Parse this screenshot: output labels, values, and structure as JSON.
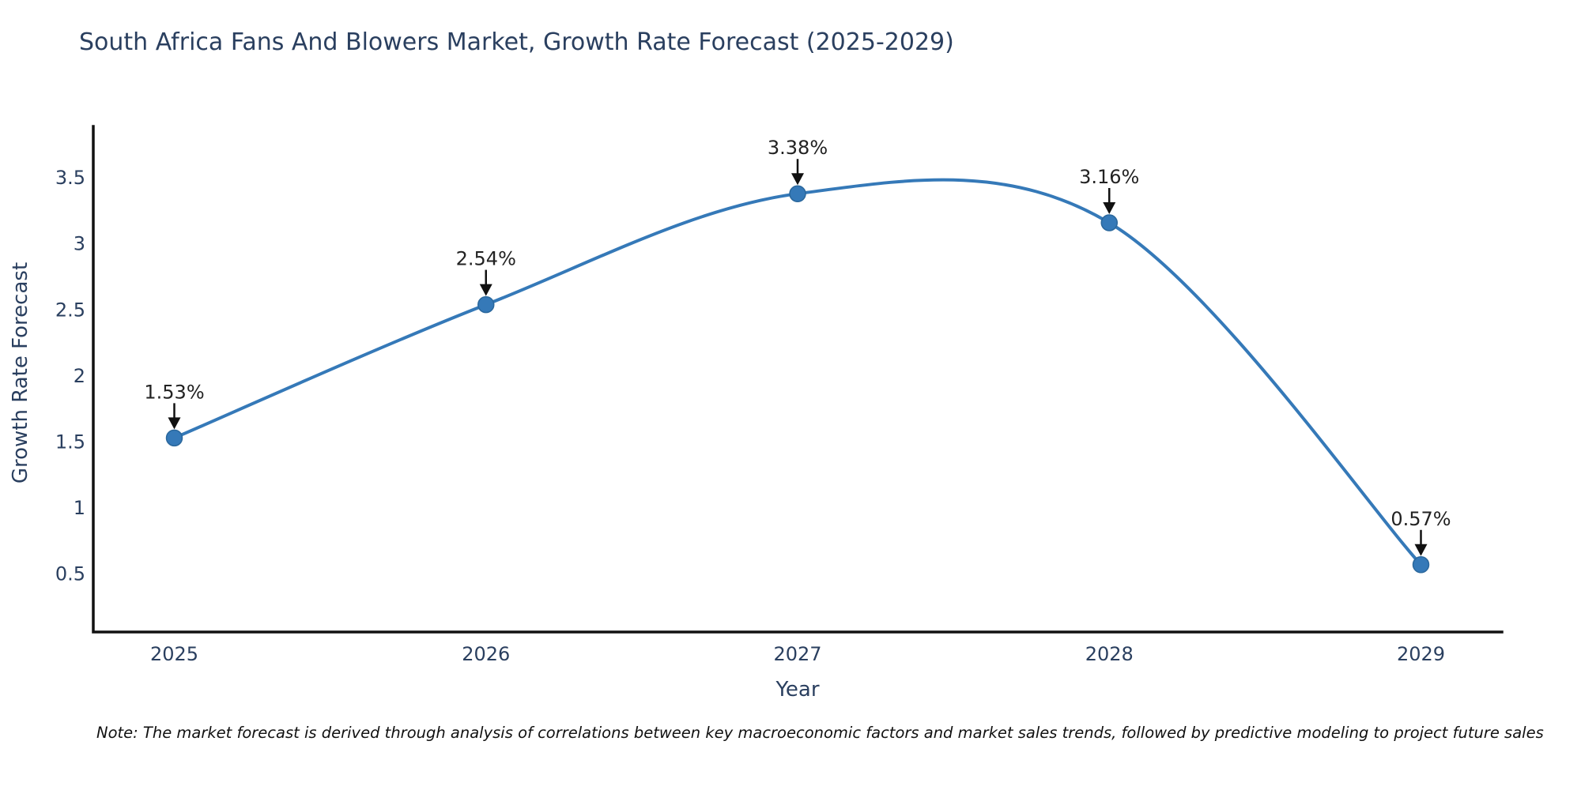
{
  "chart_data": {
    "type": "line",
    "title": "South Africa Fans And Blowers Market, Growth Rate Forecast (2025-2029)",
    "xlabel": "Year",
    "ylabel": "Growth Rate Forecast",
    "series_name": "Growth Rate Forecast",
    "x": [
      2025,
      2026,
      2027,
      2028,
      2029
    ],
    "values": [
      1.53,
      2.54,
      3.38,
      3.16,
      0.57
    ],
    "point_labels": [
      "1.53%",
      "2.54%",
      "3.38%",
      "3.16%",
      "0.57%"
    ],
    "line_shape": "spline",
    "markers": true,
    "annotations_have_arrows": true,
    "xticks": [
      "2025",
      "2026",
      "2027",
      "2028",
      "2029"
    ],
    "xtick_values": [
      2025,
      2026,
      2027,
      2028,
      2029
    ],
    "yticks": [
      0.5,
      1,
      1.5,
      2,
      2.5,
      3,
      3.5
    ],
    "xlim": [
      2024.74,
      2029.26
    ],
    "ylim": [
      0.06,
      3.89
    ],
    "grid": false,
    "legend": "none",
    "colors": {
      "line": "#3579b8",
      "marker": "#3579b8",
      "marker_edge": "#2a679c",
      "axis_line": "#111111",
      "tick_text": "#2a3f5f",
      "title_text": "#2a3f5f",
      "annotation_text": "#222222",
      "arrow": "#111111",
      "background": "#ffffff"
    }
  },
  "note": {
    "text": "Note: The market forecast is derived through analysis of correlations between key macroeconomic factors and market sales trends, followed by predictive modeling to project future sales"
  }
}
